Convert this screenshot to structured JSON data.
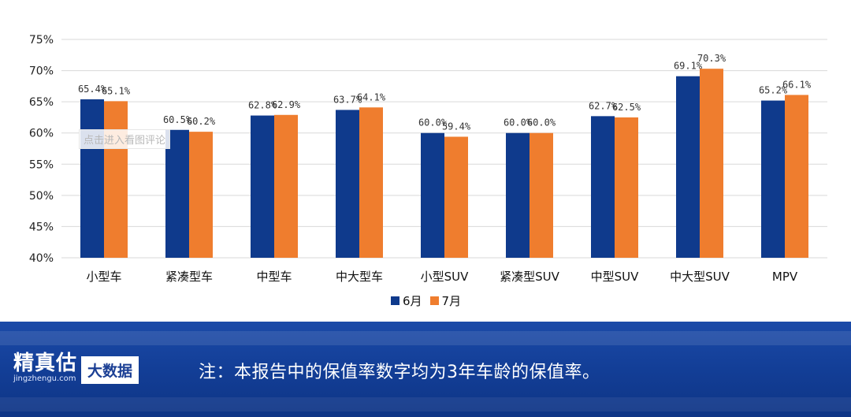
{
  "chart_data": {
    "type": "bar",
    "categories": [
      "小型车",
      "紧凑型车",
      "中型车",
      "中大型车",
      "小型SUV",
      "紧凑型SUV",
      "中型SUV",
      "中大型SUV",
      "MPV"
    ],
    "series": [
      {
        "name": "6月",
        "values": [
          65.4,
          60.5,
          62.8,
          63.7,
          60.0,
          60.0,
          62.7,
          69.1,
          65.2
        ],
        "labels": [
          "65.4%",
          "60.5%",
          "62.8%",
          "63.7%",
          "60.0%",
          "60.0%",
          "62.7%",
          "69.1%",
          "65.2%"
        ],
        "color": "#0f3a8c"
      },
      {
        "name": "7月",
        "values": [
          65.1,
          60.2,
          62.9,
          64.1,
          59.4,
          60.0,
          62.5,
          70.3,
          66.1
        ],
        "labels": [
          "65.1%",
          "60.2%",
          "62.9%",
          "64.1%",
          "59.4%",
          "60.0%",
          "62.5%",
          "70.3%",
          "66.1%"
        ],
        "color": "#ef7d2e"
      }
    ],
    "ylim": [
      40,
      75
    ],
    "yticks": [
      "40%",
      "45%",
      "50%",
      "55%",
      "60%",
      "65%",
      "70%",
      "75%"
    ],
    "grid": true,
    "legend_position": "bottom-center"
  },
  "overlay": {
    "tip": "点击进入看图评论"
  },
  "footer": {
    "brand": "精真估",
    "brand_site": "jingzhengu.com",
    "tag": "大数据",
    "note": "注：本报告中的保值率数字均为3年车龄的保值率。"
  }
}
